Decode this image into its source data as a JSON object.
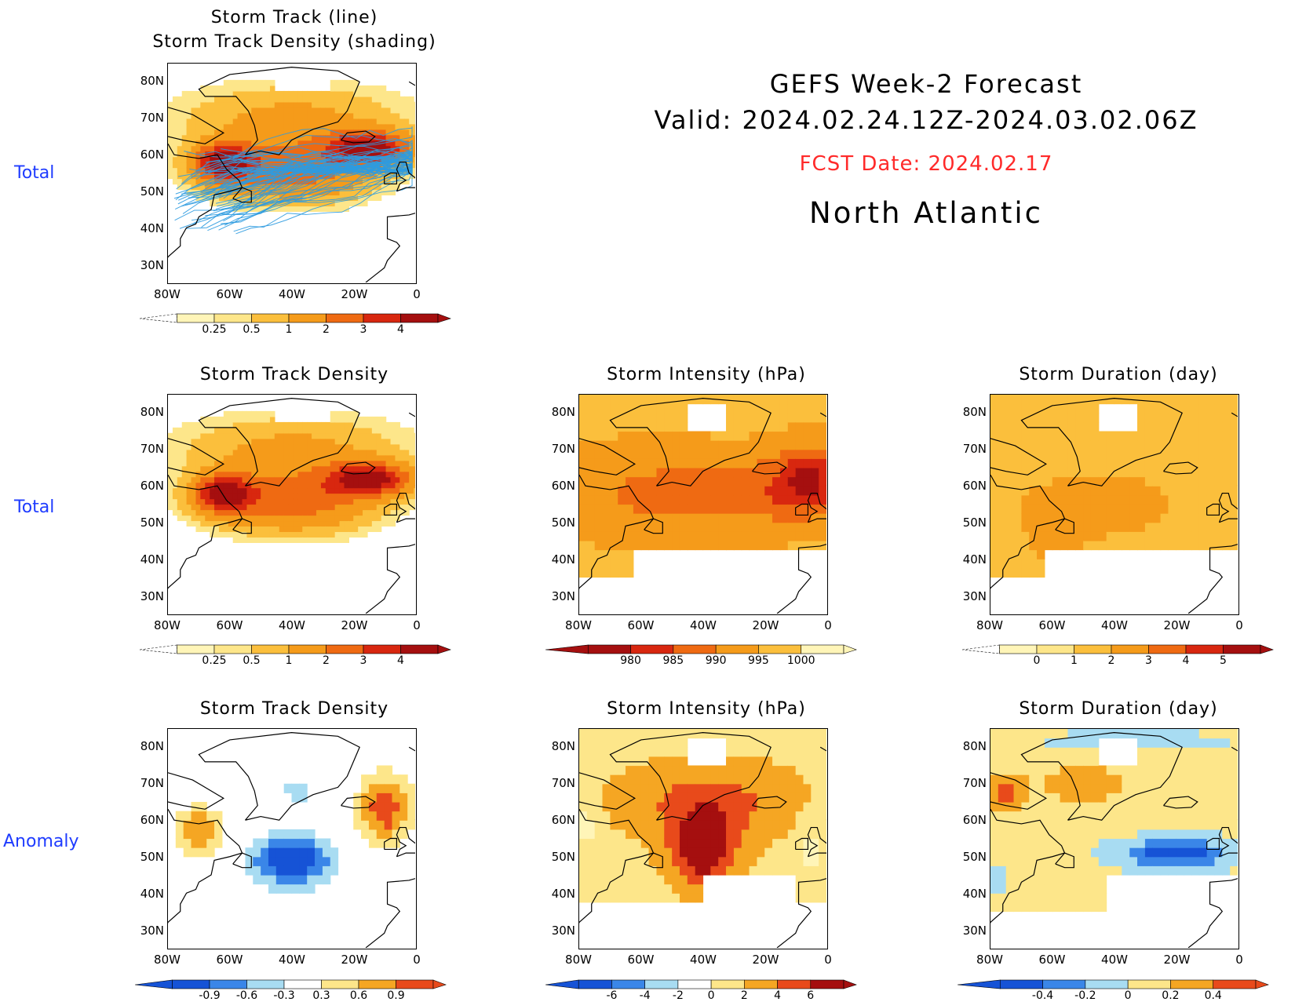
{
  "header": {
    "title": "GEFS Week-2 Forecast",
    "valid": "Valid: 2024.02.24.12Z-2024.03.02.06Z",
    "fcst_date": "FCST Date: 2024.02.17",
    "region": "North Atlantic"
  },
  "row_labels": [
    "Total",
    "Total",
    "Anomaly"
  ],
  "axes": {
    "lat_labels": [
      "80N",
      "70N",
      "60N",
      "50N",
      "40N",
      "30N"
    ],
    "lon_labels": [
      "80W",
      "60W",
      "40W",
      "20W",
      "0"
    ]
  },
  "panels": [
    {
      "title1": "Storm Track (line)",
      "title2": "Storm Track Density (shading)"
    },
    {
      "title": "Storm Track Density"
    },
    {
      "title": "Storm Intensity (hPa)"
    },
    {
      "title": "Storm Duration (day)"
    },
    {
      "title": "Storm Track Density"
    },
    {
      "title": "Storm Intensity (hPa)"
    },
    {
      "title": "Storm Duration (day)"
    }
  ],
  "colorbars": {
    "density": {
      "ticks": [
        "0.25",
        "0.5",
        "1",
        "2",
        "3",
        "4"
      ],
      "colors": [
        "#fff5b8",
        "#fde68a",
        "#fbbf3c",
        "#f59b1a",
        "#ef6a12",
        "#d8270f",
        "#a50f0f"
      ]
    },
    "intensity": {
      "ticks": [
        "980",
        "985",
        "990",
        "995",
        "1000"
      ],
      "colors": [
        "#a50f0f",
        "#d8270f",
        "#ef6a12",
        "#f59b1a",
        "#fbbf3c",
        "#fff5b8"
      ]
    },
    "duration": {
      "ticks": [
        "0",
        "1",
        "2",
        "3",
        "4",
        "5"
      ],
      "colors": [
        "#fff5b8",
        "#fde68a",
        "#fbbf3c",
        "#f59b1a",
        "#ef6a12",
        "#d8270f",
        "#a50f0f"
      ]
    },
    "density_anom": {
      "ticks": [
        "-0.9",
        "-0.6",
        "-0.3",
        "0.3",
        "0.6",
        "0.9"
      ],
      "colors": [
        "#1653d6",
        "#3a86e8",
        "#a8dcf2",
        "#ffffff",
        "#fde68a",
        "#f5a623",
        "#e84a1b"
      ]
    },
    "intensity_anom": {
      "ticks": [
        "-6",
        "-4",
        "-2",
        "0",
        "2",
        "4",
        "6"
      ],
      "colors": [
        "#1653d6",
        "#3a86e8",
        "#a8dcf2",
        "#ffffff",
        "#fde68a",
        "#f5a623",
        "#e84a1b",
        "#a50f0f"
      ]
    },
    "duration_anom": {
      "ticks": [
        "-0.4",
        "-0.2",
        "0",
        "0.2",
        "0.4"
      ],
      "colors": [
        "#1653d6",
        "#3a86e8",
        "#a8dcf2",
        "#fde68a",
        "#f5a623",
        "#e84a1b"
      ]
    }
  },
  "chart_data": [
    {
      "type": "heatmap",
      "title": "Storm Track (line) / Storm Track Density (shading)",
      "xlim": [
        "80W",
        "0"
      ],
      "ylim": [
        "25N",
        "85N"
      ],
      "colorbar": [
        "0.25",
        "0.5",
        "1",
        "2",
        "3",
        "4"
      ],
      "grid": false
    },
    {
      "type": "heatmap",
      "title": "Storm Track Density",
      "xlim": [
        "80W",
        "0"
      ],
      "ylim": [
        "25N",
        "85N"
      ],
      "colorbar": [
        "0.25",
        "0.5",
        "1",
        "2",
        "3",
        "4"
      ],
      "max_region": "60N, 60W and 60N, 20W-10W",
      "grid": false
    },
    {
      "type": "heatmap",
      "title": "Storm Intensity (hPa)",
      "xlim": [
        "80W",
        "0"
      ],
      "ylim": [
        "25N",
        "85N"
      ],
      "colorbar": [
        "980",
        "985",
        "990",
        "995",
        "1000"
      ],
      "grid": false
    },
    {
      "type": "heatmap",
      "title": "Storm Duration (day)",
      "xlim": [
        "80W",
        "0"
      ],
      "ylim": [
        "25N",
        "85N"
      ],
      "colorbar": [
        "0",
        "1",
        "2",
        "3",
        "4",
        "5"
      ],
      "grid": false
    },
    {
      "type": "heatmap",
      "title": "Storm Track Density (Anomaly)",
      "xlim": [
        "80W",
        "0"
      ],
      "ylim": [
        "25N",
        "85N"
      ],
      "colorbar": [
        "-0.9",
        "-0.6",
        "-0.3",
        "0.3",
        "0.6",
        "0.9"
      ],
      "grid": false
    },
    {
      "type": "heatmap",
      "title": "Storm Intensity (hPa) (Anomaly)",
      "xlim": [
        "80W",
        "0"
      ],
      "ylim": [
        "25N",
        "85N"
      ],
      "colorbar": [
        "-6",
        "-4",
        "-2",
        "0",
        "2",
        "4",
        "6"
      ],
      "grid": false
    },
    {
      "type": "heatmap",
      "title": "Storm Duration (day) (Anomaly)",
      "xlim": [
        "80W",
        "0"
      ],
      "ylim": [
        "25N",
        "85N"
      ],
      "colorbar": [
        "-0.4",
        "-0.2",
        "0",
        "0.2",
        "0.4"
      ],
      "grid": false
    }
  ]
}
